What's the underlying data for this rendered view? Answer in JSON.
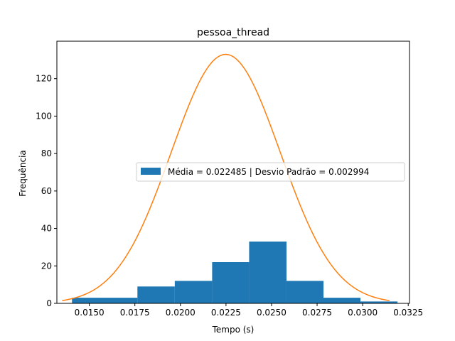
{
  "chart_data": {
    "type": "bar",
    "title": "pessoa_thread",
    "xlabel": "Tempo (s)",
    "ylabel": "Frequência",
    "xlim": [
      0.01322,
      0.03257
    ],
    "ylim": [
      0,
      140
    ],
    "x_ticks": [
      0.015,
      0.0175,
      0.02,
      0.0225,
      0.025,
      0.0275,
      0.03,
      0.0325
    ],
    "x_tick_labels": [
      "0.0150",
      "0.0175",
      "0.0200",
      "0.0225",
      "0.0250",
      "0.0275",
      "0.0300",
      "0.0325"
    ],
    "y_ticks": [
      0,
      20,
      40,
      60,
      80,
      100,
      120
    ],
    "y_tick_labels": [
      "0",
      "20",
      "40",
      "60",
      "80",
      "100",
      "120"
    ],
    "grid": false,
    "legend_position": "center-right",
    "legend": [
      "Média = 0.022485 | Desvio Padrão = 0.002994"
    ],
    "series": [
      {
        "kind": "histogram",
        "color": "#1f77b4",
        "bin_edges": [
          0.01405,
          0.01764,
          0.01969,
          0.02174,
          0.02377,
          0.02582,
          0.02785,
          0.02988,
          0.03191
        ],
        "counts": [
          3,
          9,
          12,
          22,
          33,
          12,
          3,
          1
        ]
      },
      {
        "kind": "normal_curve",
        "color": "#ff7f0e",
        "mean": 0.022485,
        "std": 0.002994,
        "x_range": [
          0.01351,
          0.03147
        ],
        "scale": 0.998
      }
    ]
  }
}
